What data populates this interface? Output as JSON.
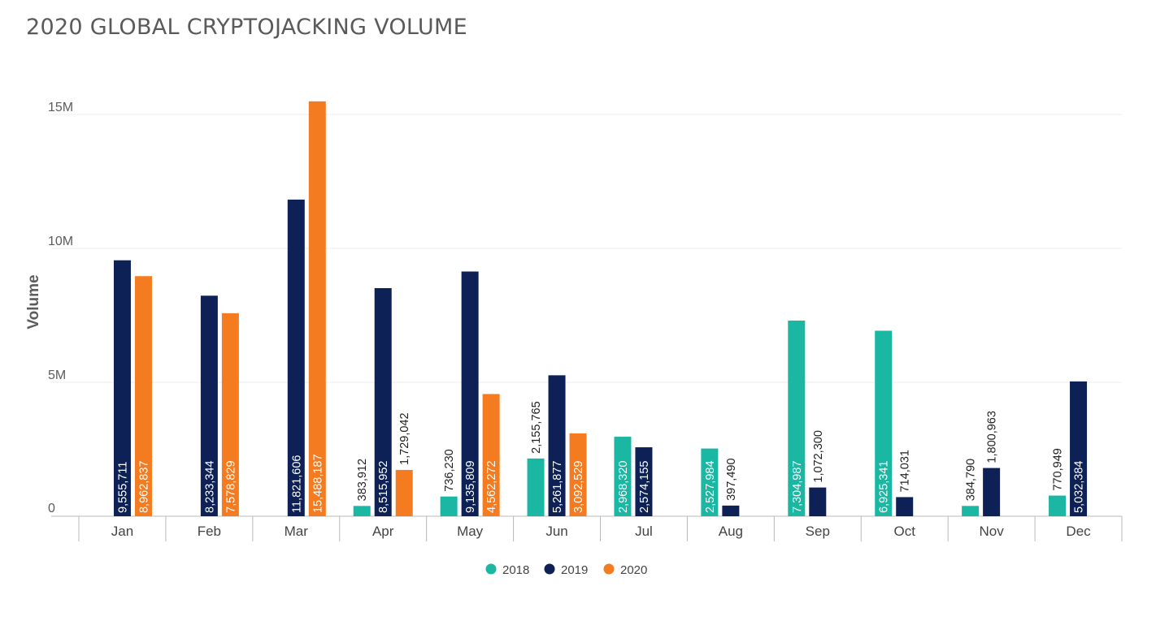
{
  "chart_data": {
    "type": "bar",
    "title": "2020 GLOBAL CRYPTOJACKING VOLUME",
    "ylabel": "Volume",
    "xlabel": "",
    "ylim": [
      0,
      15800000
    ],
    "yticks": [
      0,
      5000000,
      10000000,
      15000000
    ],
    "ytick_labels": [
      "0",
      "5M",
      "10M",
      "15M"
    ],
    "grid": true,
    "legend_position": "bottom-center",
    "categories": [
      "Jan",
      "Feb",
      "Mar",
      "Apr",
      "May",
      "Jun",
      "Jul",
      "Aug",
      "Sep",
      "Oct",
      "Nov",
      "Dec"
    ],
    "series": [
      {
        "name": "2018",
        "color": "#1ab7a3",
        "values": [
          null,
          null,
          null,
          383912,
          736230,
          2155765,
          2968320,
          2527984,
          7304987,
          6925341,
          384790,
          770949
        ],
        "labels": [
          "",
          "",
          "",
          "383,912",
          "736,230",
          "2,155,765",
          "2,968,320",
          "2,527,984",
          "7,304,987",
          "6,925,341",
          "384,790",
          "770,949"
        ]
      },
      {
        "name": "2019",
        "color": "#0d2156",
        "values": [
          9555711,
          8233344,
          11821606,
          8515952,
          9135809,
          5261877,
          2574155,
          397490,
          1072300,
          714031,
          1800963,
          5032384
        ],
        "labels": [
          "9,555,711",
          "8,233,344",
          "11,821,606",
          "8,515,952",
          "9,135,809",
          "5,261,877",
          "2,574,155",
          "397,490",
          "1,072,300",
          "714,031",
          "1,800,963",
          "5,032,384"
        ]
      },
      {
        "name": "2020",
        "color": "#f47b20",
        "values": [
          8962837,
          7578829,
          15488187,
          1729042,
          4562272,
          3092529,
          null,
          null,
          null,
          null,
          null,
          null
        ],
        "labels": [
          "8,962,837",
          "7,578,829",
          "15,488,187",
          "1,729,042",
          "4,562,272",
          "3,092,529",
          "",
          "",
          "",
          "",
          "",
          ""
        ]
      }
    ]
  }
}
